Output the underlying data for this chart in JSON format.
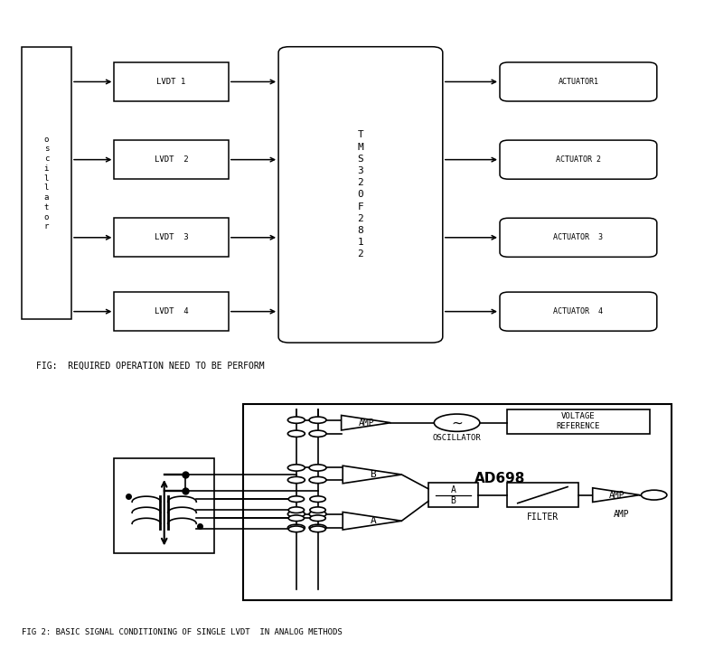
{
  "bg_color": "#ffffff",
  "fig1_caption": "FIG:  REQUIRED OPERATION NEED TO BE PERFORM",
  "fig2_caption": "FIG 2: BASIC SIGNAL CONDITIONING OF SINGLE LVDT  IN ANALOG METHODS",
  "tms_text": "T\nM\nS\n3\n2\n0\nF\n2\n8\n1\n2",
  "ad698_text": "AD698",
  "lvdt_labels": [
    "LVDT 1",
    "LVDT  2",
    "LVDT  3",
    "LVDT  4"
  ],
  "actuator_labels": [
    "ACTUATOR1",
    "ACTUATOR 2",
    "ACTUATOR  3",
    "ACTUATOR  4"
  ],
  "osc_vert_label": "o\ns\nc\ni\nl\nl\na\nt\no\nr",
  "oscillator_label": "OSCILLATOR",
  "voltage_ref_label": "VOLTAGE\nREFERENCE",
  "filter_label": "FILTER",
  "amp_label": "AMP",
  "b_label": "B",
  "a_label": "A",
  "ab_top": "A",
  "ab_bot": "B"
}
